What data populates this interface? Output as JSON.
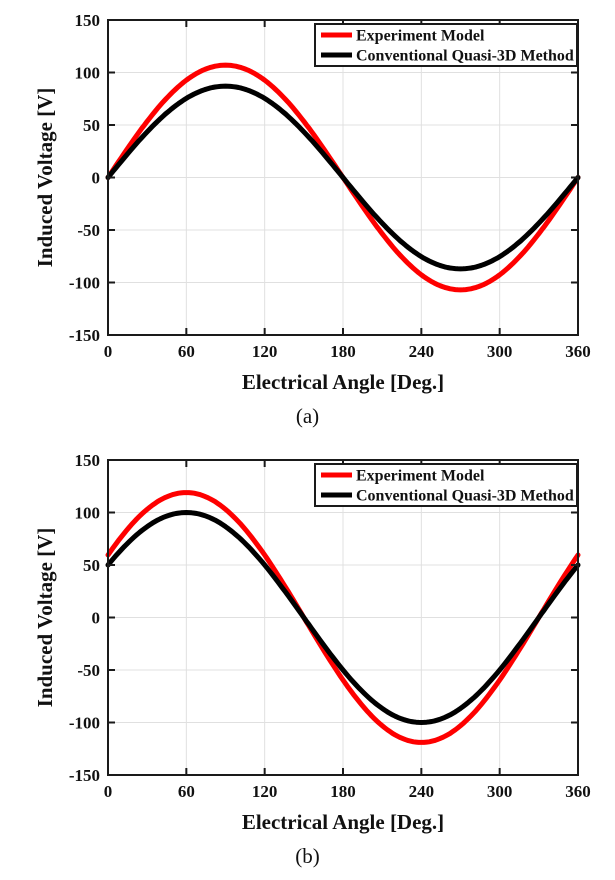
{
  "page": {
    "background_color": "#ffffff",
    "figure_type": "two-panel line chart comparison"
  },
  "colors": {
    "experiment_model": "#fe0000",
    "conventional_method": "#000000",
    "grid": "#e0e0e0",
    "axis": "#1a1a1a"
  },
  "chart_data": [
    {
      "type": "line",
      "caption": "(a)",
      "xlabel": "Electrical Angle [Deg.]",
      "ylabel": "Induced Voltage [V]",
      "xlim": [
        0,
        360
      ],
      "ylim": [
        -150,
        150
      ],
      "xticks": [
        0,
        60,
        120,
        180,
        240,
        300,
        360
      ],
      "yticks": [
        -150,
        -100,
        -50,
        0,
        50,
        100,
        150
      ],
      "grid": true,
      "grid_color": "#e0e0e0",
      "axis_color": "#1a1a1a",
      "legend_position": "top-right",
      "x_sampled_deg": [
        0,
        30,
        60,
        90,
        120,
        150,
        180,
        210,
        240,
        270,
        300,
        330,
        360
      ],
      "series": [
        {
          "name": "Experiment Model",
          "color": "#fe0000",
          "line_width": 5,
          "model": "sinusoid y = A*sin(x + phase)",
          "amplitude_V": 107,
          "phase_deg": 0,
          "values": [
            0,
            53.5,
            92.7,
            107,
            92.7,
            53.5,
            0,
            -53.5,
            -92.7,
            -107,
            -92.7,
            -53.5,
            0
          ]
        },
        {
          "name": "Conventional Quasi-3D Method",
          "color": "#000000",
          "line_width": 5,
          "model": "sinusoid y = A*sin(x + phase)",
          "amplitude_V": 87,
          "phase_deg": 0,
          "values": [
            0,
            43.5,
            75.3,
            87,
            75.3,
            43.5,
            0,
            -43.5,
            -75.3,
            -87,
            -75.3,
            -43.5,
            0
          ]
        }
      ]
    },
    {
      "type": "line",
      "caption": "(b)",
      "xlabel": "Electrical Angle [Deg.]",
      "ylabel": "Induced Voltage [V]",
      "xlim": [
        0,
        360
      ],
      "ylim": [
        -150,
        150
      ],
      "xticks": [
        0,
        60,
        120,
        180,
        240,
        300,
        360
      ],
      "yticks": [
        -150,
        -100,
        -50,
        0,
        50,
        100,
        150
      ],
      "grid": true,
      "grid_color": "#e0e0e0",
      "axis_color": "#1a1a1a",
      "legend_position": "top-right",
      "x_sampled_deg": [
        0,
        30,
        60,
        90,
        120,
        150,
        180,
        210,
        240,
        270,
        300,
        330,
        360
      ],
      "series": [
        {
          "name": "Experiment Model",
          "color": "#fe0000",
          "line_width": 5,
          "model": "sinusoid y = A*sin(x + phase)",
          "amplitude_V": 119,
          "phase_deg": 30,
          "values": [
            59.5,
            103.1,
            119,
            103.1,
            59.5,
            0,
            -59.5,
            -103.1,
            -119,
            -103.1,
            -59.5,
            0,
            59.5
          ]
        },
        {
          "name": "Conventional Quasi-3D Method",
          "color": "#000000",
          "line_width": 5,
          "model": "sinusoid y = A*sin(x + phase)",
          "amplitude_V": 100,
          "phase_deg": 30,
          "values": [
            50,
            86.6,
            100,
            86.6,
            50,
            0,
            -50,
            -86.6,
            -100,
            -86.6,
            -50,
            0,
            50
          ]
        }
      ]
    }
  ]
}
